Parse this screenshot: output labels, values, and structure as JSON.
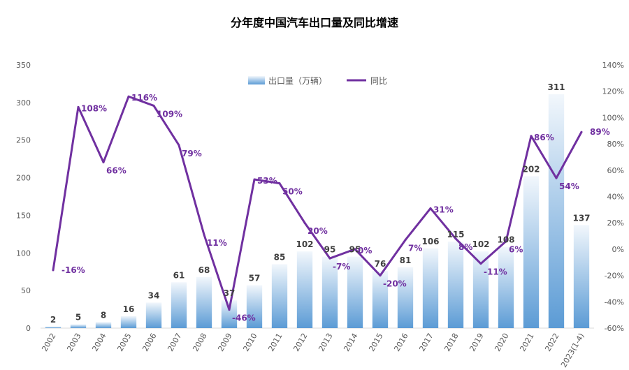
{
  "chart_data": {
    "type": "bar",
    "title": "分年度中国汽车出口量及同比增速",
    "categories": [
      "2002",
      "2003",
      "2004",
      "2005",
      "2006",
      "2007",
      "2008",
      "2009",
      "2010",
      "2011",
      "2012",
      "2013",
      "2014",
      "2015",
      "2016",
      "2017",
      "2018",
      "2019",
      "2020",
      "2021",
      "2022",
      "2023(1-4)"
    ],
    "series": [
      {
        "name": "出口量（万辆）",
        "type": "bar",
        "axis": "left",
        "values": [
          2,
          5,
          8,
          16,
          34,
          61,
          68,
          37,
          57,
          85,
          102,
          95,
          95,
          76,
          81,
          106,
          115,
          102,
          108,
          202,
          311,
          137
        ],
        "labels": [
          "2",
          "5",
          "8",
          "16",
          "34",
          "61",
          "68",
          "37",
          "57",
          "85",
          "102",
          "95",
          "95",
          "76",
          "81",
          "106",
          "115",
          "102",
          "108",
          "202",
          "311",
          "137"
        ]
      },
      {
        "name": "同比",
        "type": "line",
        "axis": "right",
        "color": "#7030a0",
        "values": [
          -16,
          108,
          66,
          116,
          109,
          79,
          11,
          -46,
          53,
          50,
          20,
          -7,
          0,
          -20,
          7,
          31,
          8,
          -11,
          6,
          86,
          54,
          89
        ],
        "labels": [
          "-16%",
          "108%",
          "66%",
          "116%",
          "109%",
          "79%",
          "11%",
          "-46%",
          "53%",
          "50%",
          "20%",
          "-7%",
          "0%",
          "-20%",
          "7%",
          "31%",
          "8%",
          "-11%",
          "6%",
          "86%",
          "54%",
          "89%"
        ]
      }
    ],
    "ylim": [
      0,
      350
    ],
    "y_ticks": [
      "0",
      "50",
      "100",
      "150",
      "200",
      "250",
      "300",
      "350"
    ],
    "y2lim": [
      -60,
      140
    ],
    "y2_ticks": [
      "-60%",
      "-40%",
      "-20%",
      "0%",
      "20%",
      "40%",
      "60%",
      "80%",
      "100%",
      "120%",
      "140%"
    ],
    "legend_position": "top-center",
    "grid": false,
    "colors": {
      "bar_top": "#eef4fb",
      "bar_bottom": "#5b9bd5",
      "line": "#7030a0",
      "label": "#404040"
    }
  }
}
